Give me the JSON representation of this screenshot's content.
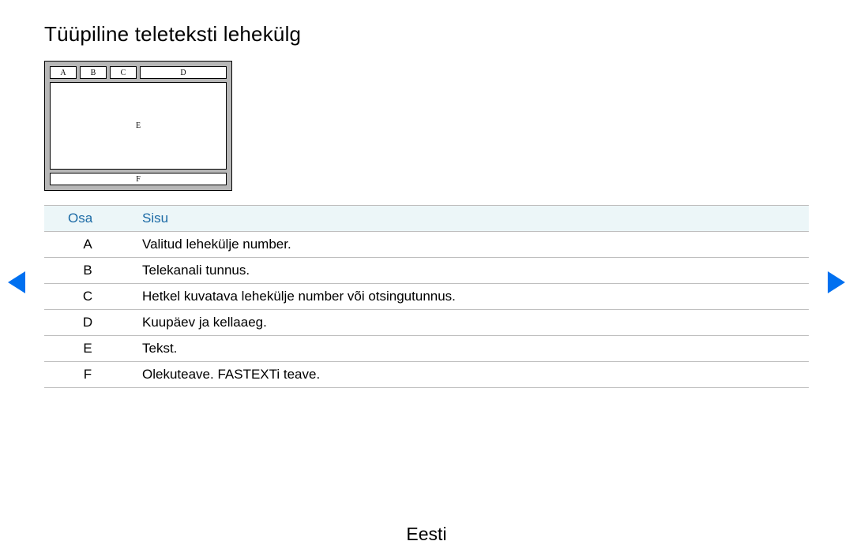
{
  "title": "Tüüpiline teleteksti lehekülg",
  "diagram": {
    "frame_color": "#b7b7b7",
    "border_color": "#000000",
    "cell_bg": "#ffffff",
    "labels": {
      "a": "A",
      "b": "B",
      "c": "C",
      "d": "D",
      "e": "E",
      "f": "F"
    }
  },
  "table": {
    "header_bg": "#ecf6f8",
    "header_color": "#1b6aa5",
    "border_color": "#bfbfbf",
    "columns": {
      "osa": "Osa",
      "sisu": "Sisu"
    },
    "rows": [
      {
        "osa": "A",
        "sisu": "Valitud lehekülje number."
      },
      {
        "osa": "B",
        "sisu": "Telekanali tunnus."
      },
      {
        "osa": "C",
        "sisu": "Hetkel kuvatava lehekülje number või otsingutunnus."
      },
      {
        "osa": "D",
        "sisu": "Kuupäev ja kellaaeg."
      },
      {
        "osa": "E",
        "sisu": "Tekst."
      },
      {
        "osa": "F",
        "sisu": "Olekuteave. FASTEXTi teave."
      }
    ]
  },
  "nav": {
    "arrow_color": "#0070f0"
  },
  "footer": "Eesti"
}
